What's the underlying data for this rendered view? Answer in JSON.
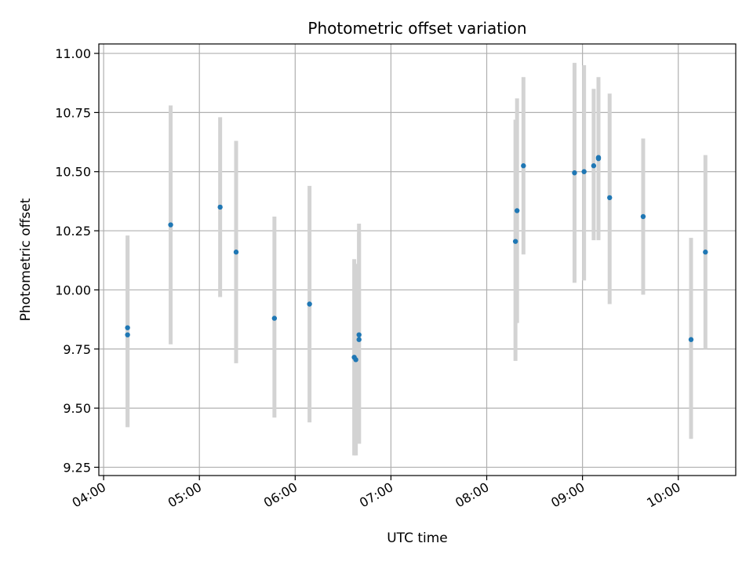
{
  "chart_data": {
    "type": "scatter",
    "title": "Photometric offset variation",
    "xlabel": "UTC time",
    "ylabel": "Photometric offset",
    "x_tick_labels": [
      "04:00",
      "05:00",
      "06:00",
      "07:00",
      "08:00",
      "09:00",
      "10:00"
    ],
    "y_tick_labels": [
      "9.25",
      "9.50",
      "9.75",
      "10.00",
      "10.25",
      "10.50",
      "10.75",
      "11.00"
    ],
    "xlim": [
      "03:57",
      "10:36"
    ],
    "ylim": [
      9.215,
      11.04
    ],
    "grid": true,
    "colors": {
      "point": "#1f77b4",
      "errorbar": "#d3d3d3",
      "grid": "#b0b0b0"
    },
    "points": [
      {
        "x": "04:15",
        "y": 9.84,
        "y_low": 9.42,
        "y_high": 10.23
      },
      {
        "x": "04:15",
        "y": 9.81,
        "y_low": 9.42,
        "y_high": 10.21
      },
      {
        "x": "04:42",
        "y": 10.275,
        "y_low": 9.77,
        "y_high": 10.78
      },
      {
        "x": "05:13",
        "y": 10.35,
        "y_low": 9.97,
        "y_high": 10.73
      },
      {
        "x": "05:23",
        "y": 10.16,
        "y_low": 9.69,
        "y_high": 10.63
      },
      {
        "x": "05:47",
        "y": 9.88,
        "y_low": 9.46,
        "y_high": 10.31
      },
      {
        "x": "06:09",
        "y": 9.94,
        "y_low": 9.44,
        "y_high": 10.44
      },
      {
        "x": "06:37",
        "y": 9.715,
        "y_low": 9.3,
        "y_high": 10.13
      },
      {
        "x": "06:38",
        "y": 9.705,
        "y_low": 9.3,
        "y_high": 10.11
      },
      {
        "x": "06:40",
        "y": 9.81,
        "y_low": 9.35,
        "y_high": 10.28
      },
      {
        "x": "06:40",
        "y": 9.79,
        "y_low": 9.35,
        "y_high": 10.24
      },
      {
        "x": "08:18",
        "y": 10.205,
        "y_low": 9.7,
        "y_high": 10.72
      },
      {
        "x": "08:19",
        "y": 10.335,
        "y_low": 9.86,
        "y_high": 10.81
      },
      {
        "x": "08:23",
        "y": 10.525,
        "y_low": 10.15,
        "y_high": 10.9
      },
      {
        "x": "08:55",
        "y": 10.495,
        "y_low": 10.03,
        "y_high": 10.96
      },
      {
        "x": "09:01",
        "y": 10.5,
        "y_low": 10.04,
        "y_high": 10.95
      },
      {
        "x": "09:07",
        "y": 10.525,
        "y_low": 10.21,
        "y_high": 10.85
      },
      {
        "x": "09:10",
        "y": 10.56,
        "y_low": 10.21,
        "y_high": 10.9
      },
      {
        "x": "09:10",
        "y": 10.555,
        "y_low": 10.22,
        "y_high": 10.88
      },
      {
        "x": "09:17",
        "y": 10.39,
        "y_low": 9.94,
        "y_high": 10.83
      },
      {
        "x": "09:38",
        "y": 10.31,
        "y_low": 9.98,
        "y_high": 10.64
      },
      {
        "x": "10:08",
        "y": 9.79,
        "y_low": 9.37,
        "y_high": 10.22
      },
      {
        "x": "10:17",
        "y": 10.16,
        "y_low": 9.75,
        "y_high": 10.57
      }
    ]
  }
}
